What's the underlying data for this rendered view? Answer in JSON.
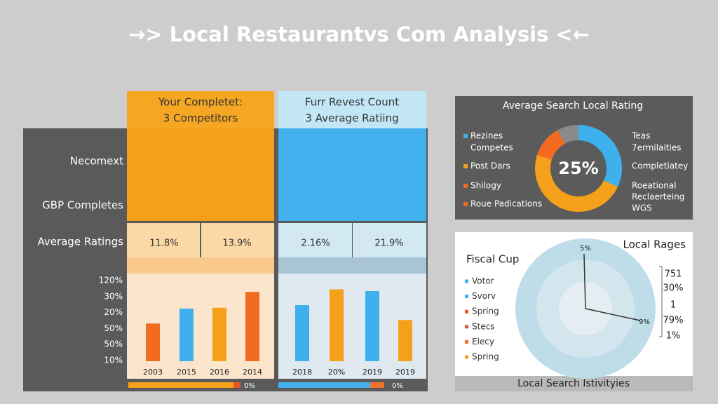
{
  "title": "→> Local Restaurantvs Com Analysis <←",
  "left_panel": {
    "headers": [
      [
        "Your Completet:",
        "3 Competitors"
      ],
      [
        "Furr Revest Count",
        "3 Average Ratiing"
      ]
    ],
    "row_labels": [
      "Necomext",
      "GBP Completes",
      "Average Ratings"
    ],
    "ratings": [
      "11.8%",
      "13.9%",
      "2.16%",
      "21.9%"
    ],
    "y_labels": [
      "120%",
      "30%",
      "20%",
      "50%",
      "50%",
      "10%"
    ],
    "bars": [
      {
        "label": "2003",
        "value": 43,
        "color": "#f26b21"
      },
      {
        "label": "2015",
        "value": 60,
        "color": "#3fb0ee"
      },
      {
        "label": "2016",
        "value": 61,
        "color": "#f5a01a"
      },
      {
        "label": "2014",
        "value": 79,
        "color": "#f26b21"
      },
      {
        "label": "2018",
        "value": 64,
        "color": "#3fb0ee"
      },
      {
        "label": "20%",
        "value": 82,
        "color": "#f5a01a"
      },
      {
        "label": "2019",
        "value": 80,
        "color": "#3fb0ee"
      },
      {
        "label": "2019",
        "value": 47,
        "color": "#f5a01a"
      }
    ],
    "footer_labels": [
      "0%",
      "0%"
    ]
  },
  "donut_panel": {
    "title": "Average Search Local Rating",
    "center": "25%",
    "segments": [
      {
        "value": 32,
        "color": "#3fb0ee"
      },
      {
        "value": 48,
        "color": "#f5a01a"
      },
      {
        "value": 12,
        "color": "#f26b21"
      },
      {
        "value": 8,
        "color": "#8a8a8a"
      }
    ],
    "legend": [
      {
        "lines": [
          "Rezines",
          "Competes"
        ],
        "color": "#3fb0ee"
      },
      {
        "lines": [
          "Post Dars"
        ],
        "color": "#f5a01a"
      },
      {
        "lines": [
          "Shilogy"
        ],
        "color": "#f26b21"
      },
      {
        "lines": [
          "Roue Padications"
        ],
        "color": "#f26b21"
      }
    ],
    "right_labels": [
      "Teas",
      "7ermilaities",
      "Completiatey",
      "Roeational",
      "Reclaerteing",
      "WGS"
    ]
  },
  "radial_panel": {
    "title": "Fiscal Cup",
    "subtitle": "Local Rages",
    "legend": [
      {
        "label": "Votor",
        "color": "#3fb0ee"
      },
      {
        "label": "Svorv",
        "color": "#3fb0ee"
      },
      {
        "label": "Spring",
        "color": "#e8542a"
      },
      {
        "label": "Stecs",
        "color": "#e8542a"
      },
      {
        "label": "Elecy",
        "color": "#f26b21"
      },
      {
        "label": "Spring",
        "color": "#f5a01a"
      }
    ],
    "pointer_labels": [
      "5%",
      "9%"
    ],
    "side_values": [
      "751",
      "30%",
      "1",
      "79%",
      "1%"
    ],
    "footer": "Local Search Istivityies"
  }
}
